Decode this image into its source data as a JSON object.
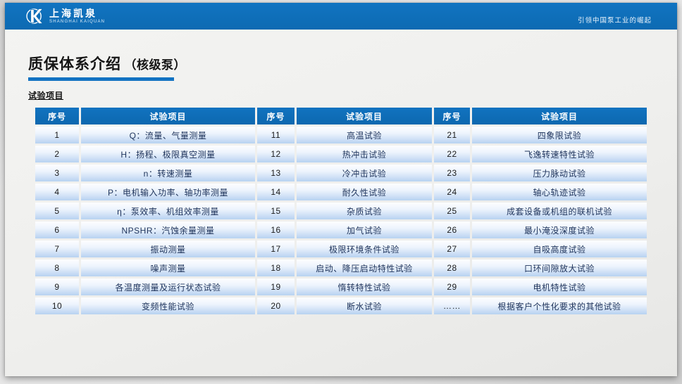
{
  "topbar": {
    "logo_cn": "上海凯泉",
    "logo_en": "SHANGHAI KAIQUAN",
    "slogan": "引领中国泵工业的崛起"
  },
  "page": {
    "title": "质保体系介绍",
    "title_suffix": "（核级泵）",
    "section_label": "试验项目"
  },
  "table": {
    "header": {
      "no": "序号",
      "item": "试验项目"
    },
    "groups": [
      {
        "rows": [
          {
            "no": "1",
            "item": "Q：流量、气量测量"
          },
          {
            "no": "2",
            "item": "H：扬程、极限真空测量"
          },
          {
            "no": "3",
            "item": "n：转速测量"
          },
          {
            "no": "4",
            "item": "P：电机输入功率、轴功率测量"
          },
          {
            "no": "5",
            "item": "η：泵效率、机组效率测量"
          },
          {
            "no": "6",
            "item": "NPSHR：汽蚀余量测量"
          },
          {
            "no": "7",
            "item": "振动测量"
          },
          {
            "no": "8",
            "item": "噪声测量"
          },
          {
            "no": "9",
            "item": "各温度测量及运行状态试验"
          },
          {
            "no": "10",
            "item": "变频性能试验"
          }
        ]
      },
      {
        "rows": [
          {
            "no": "11",
            "item": "高温试验"
          },
          {
            "no": "12",
            "item": "热冲击试验"
          },
          {
            "no": "13",
            "item": "冷冲击试验"
          },
          {
            "no": "14",
            "item": "耐久性试验"
          },
          {
            "no": "15",
            "item": "杂质试验"
          },
          {
            "no": "16",
            "item": "加气试验"
          },
          {
            "no": "17",
            "item": "极限环境条件试验"
          },
          {
            "no": "18",
            "item": "启动、降压启动特性试验"
          },
          {
            "no": "19",
            "item": "惰转特性试验"
          },
          {
            "no": "20",
            "item": "断水试验"
          }
        ]
      },
      {
        "rows": [
          {
            "no": "21",
            "item": "四象限试验"
          },
          {
            "no": "22",
            "item": "飞逸转速特性试验"
          },
          {
            "no": "23",
            "item": "压力脉动试验"
          },
          {
            "no": "24",
            "item": "轴心轨迹试验"
          },
          {
            "no": "25",
            "item": "成套设备或机组的联机试验"
          },
          {
            "no": "26",
            "item": "最小淹没深度试验"
          },
          {
            "no": "27",
            "item": "自吸高度试验"
          },
          {
            "no": "28",
            "item": "口环间隙放大试验"
          },
          {
            "no": "29",
            "item": "电机特性试验"
          },
          {
            "no": "……",
            "item": "根据客户个性化要求的其他试验"
          }
        ]
      }
    ]
  },
  "colors": {
    "band_blue": "#0e6eb8",
    "header_blue": "#0f70bd",
    "rule_blue": "#1373c2",
    "row_gradient_top": "#fdfeff",
    "row_gradient_bottom": "#b7d2f1",
    "item_text": "#20355c",
    "slide_bg": "#f1f1ef"
  }
}
